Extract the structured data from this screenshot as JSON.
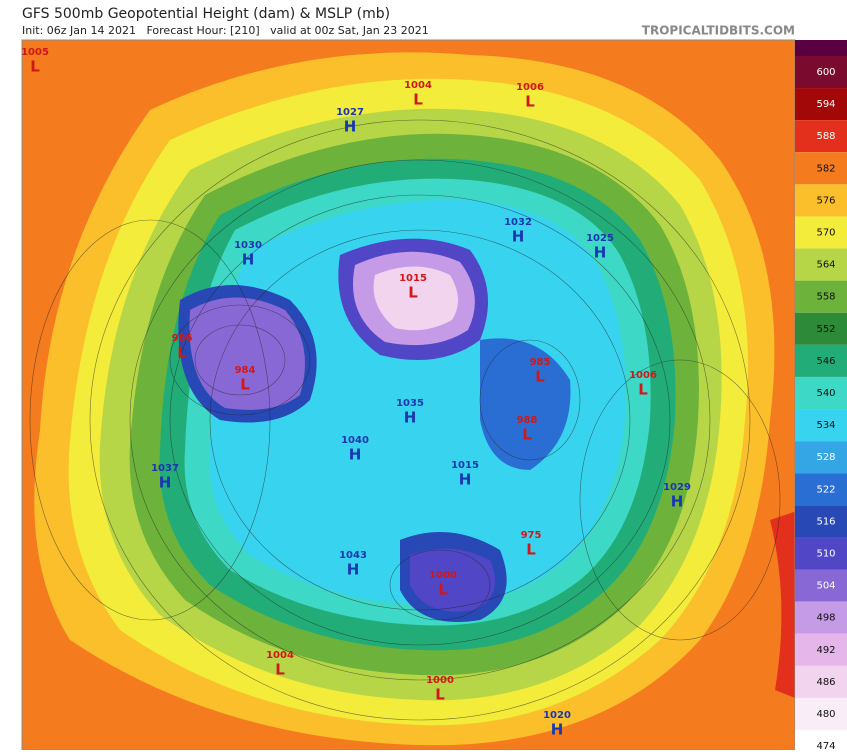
{
  "header": {
    "title": "GFS 500mb Geopotential Height (dam) & MSLP (mb)",
    "subtitle": "Init: 06z Jan 14 2021   Forecast Hour: [210]   valid at 00z Sat, Jan 23 2021",
    "site": "TROPICALTIDBITS.COM"
  },
  "colorbar": {
    "levels": [
      {
        "value": 600,
        "color": "#7a0a2e"
      },
      {
        "value": 594,
        "color": "#a30808"
      },
      {
        "value": 588,
        "color": "#e2301c"
      },
      {
        "value": 582,
        "color": "#f47b1e"
      },
      {
        "value": 576,
        "color": "#fbbf2c"
      },
      {
        "value": 570,
        "color": "#f3ec3a"
      },
      {
        "value": 564,
        "color": "#b6d647"
      },
      {
        "value": 558,
        "color": "#6db23a"
      },
      {
        "value": 552,
        "color": "#2d8a38"
      },
      {
        "value": 546,
        "color": "#22ad78"
      },
      {
        "value": 540,
        "color": "#3ed8c6"
      },
      {
        "value": 534,
        "color": "#38d4ef"
      },
      {
        "value": 528,
        "color": "#34a6e6"
      },
      {
        "value": 522,
        "color": "#2a6ed4"
      },
      {
        "value": 516,
        "color": "#2848b6"
      },
      {
        "value": 510,
        "color": "#5046c6"
      },
      {
        "value": 504,
        "color": "#8868d4"
      },
      {
        "value": 498,
        "color": "#c59ae6"
      },
      {
        "value": 492,
        "color": "#e4b6ea"
      },
      {
        "value": 486,
        "color": "#f2d4ef"
      },
      {
        "value": 480,
        "color": "#f9eef7"
      },
      {
        "value": 474,
        "color": "#ffffff"
      }
    ]
  },
  "pressure_centers": [
    {
      "type": "L",
      "value": 1005
    },
    {
      "type": "L",
      "value": 1004
    },
    {
      "type": "L",
      "value": 1006
    },
    {
      "type": "H",
      "value": 1027
    },
    {
      "type": "H",
      "value": 1030
    },
    {
      "type": "H",
      "value": 1032
    },
    {
      "type": "H",
      "value": 1025
    },
    {
      "type": "L",
      "value": 1015
    },
    {
      "type": "L",
      "value": 986
    },
    {
      "type": "L",
      "value": 984
    },
    {
      "type": "L",
      "value": 985
    },
    {
      "type": "L",
      "value": 1006
    },
    {
      "type": "H",
      "value": 1035
    },
    {
      "type": "L",
      "value": 988
    },
    {
      "type": "H",
      "value": 1040
    },
    {
      "type": "H",
      "value": 1037
    },
    {
      "type": "H",
      "value": 1015
    },
    {
      "type": "H",
      "value": 1029
    },
    {
      "type": "L",
      "value": 975
    },
    {
      "type": "H",
      "value": 1043
    },
    {
      "type": "L",
      "value": 1000
    },
    {
      "type": "L",
      "value": 1004
    },
    {
      "type": "L",
      "value": 1000
    },
    {
      "type": "H",
      "value": 1020
    }
  ]
}
